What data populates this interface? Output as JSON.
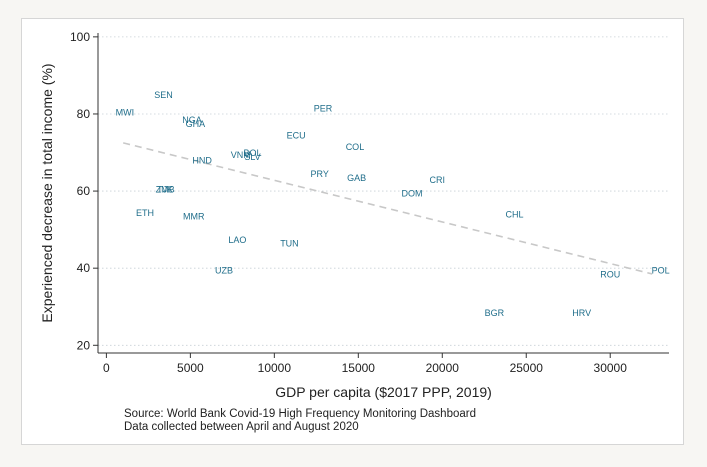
{
  "chart_data": {
    "type": "scatter",
    "xlabel": "GDP per capita ($2017 PPP, 2019)",
    "ylabel": "Experienced decrease in total income (%)",
    "xlim": [
      -500,
      33500
    ],
    "ylim": [
      18,
      101
    ],
    "xticks": [
      0,
      5000,
      10000,
      15000,
      20000,
      25000,
      30000
    ],
    "yticks": [
      20,
      40,
      60,
      80,
      100
    ],
    "grid": "y-dotted",
    "points": [
      {
        "label": "SEN",
        "x": 3400,
        "y": 85
      },
      {
        "label": "MWI",
        "x": 1100,
        "y": 80.5
      },
      {
        "label": "NGA",
        "x": 5100,
        "y": 78.5
      },
      {
        "label": "GHA",
        "x": 5300,
        "y": 77.5
      },
      {
        "label": "PER",
        "x": 12900,
        "y": 81.5
      },
      {
        "label": "ECU",
        "x": 11300,
        "y": 74.5
      },
      {
        "label": "COL",
        "x": 14800,
        "y": 71.5
      },
      {
        "label": "HND",
        "x": 5700,
        "y": 68
      },
      {
        "label": "VNM",
        "x": 8000,
        "y": 69.5
      },
      {
        "label": "BOL",
        "x": 8700,
        "y": 70
      },
      {
        "label": "SLV",
        "x": 8700,
        "y": 69
      },
      {
        "label": "PRY",
        "x": 12700,
        "y": 64.5
      },
      {
        "label": "GAB",
        "x": 14900,
        "y": 63.5
      },
      {
        "label": "CRI",
        "x": 19700,
        "y": 63
      },
      {
        "label": "DOM",
        "x": 18200,
        "y": 59.5
      },
      {
        "label": "TJK",
        "x": 3500,
        "y": 60.5
      },
      {
        "label": "ZMB",
        "x": 3500,
        "y": 60.5
      },
      {
        "label": "ETH",
        "x": 2300,
        "y": 54.5
      },
      {
        "label": "MMR",
        "x": 5200,
        "y": 53.5
      },
      {
        "label": "CHL",
        "x": 24300,
        "y": 54
      },
      {
        "label": "LAO",
        "x": 7800,
        "y": 47.5
      },
      {
        "label": "TUN",
        "x": 10900,
        "y": 46.5
      },
      {
        "label": "UZB",
        "x": 7000,
        "y": 39.5
      },
      {
        "label": "ROU",
        "x": 30000,
        "y": 38.5
      },
      {
        "label": "POL",
        "x": 33000,
        "y": 39.5
      },
      {
        "label": "BGR",
        "x": 23100,
        "y": 28.5
      },
      {
        "label": "HRV",
        "x": 28300,
        "y": 28.5
      }
    ],
    "fit_line": {
      "x": [
        1000,
        32500
      ],
      "y": [
        72.5,
        38.5
      ]
    }
  },
  "notes": {
    "source": "Source: World Bank Covid-19 High Frequency Monitoring Dashboard",
    "period": "Data collected between April and August 2020"
  }
}
